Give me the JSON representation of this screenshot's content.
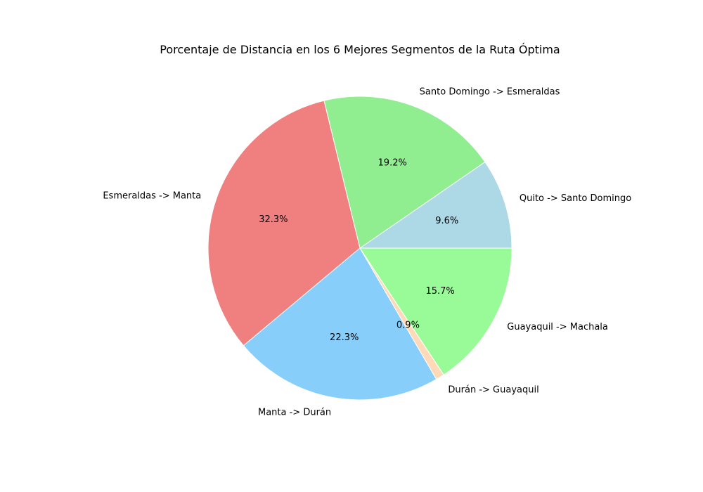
{
  "chart_data": {
    "type": "pie",
    "title": "Porcentaje de Distancia en los 6 Mejores Segmentos de la Ruta Óptima",
    "start_angle_deg": 0,
    "direction": "counterclockwise",
    "slices": [
      {
        "label": "Quito -> Santo Domingo",
        "value": 9.6,
        "pct_label": "9.6%",
        "color": "#add8e6"
      },
      {
        "label": "Santo Domingo -> Esmeraldas",
        "value": 19.2,
        "pct_label": "19.2%",
        "color": "#90ee90"
      },
      {
        "label": "Esmeraldas -> Manta",
        "value": 32.3,
        "pct_label": "32.3%",
        "color": "#f08080"
      },
      {
        "label": "Manta -> Durán",
        "value": 22.3,
        "pct_label": "22.3%",
        "color": "#87cefa"
      },
      {
        "label": "Durán -> Guayaquil",
        "value": 0.9,
        "pct_label": "0.9%",
        "color": "#ffdab9"
      },
      {
        "label": "Guayaquil -> Machala",
        "value": 15.7,
        "pct_label": "15.7%",
        "color": "#98fb98"
      }
    ]
  }
}
